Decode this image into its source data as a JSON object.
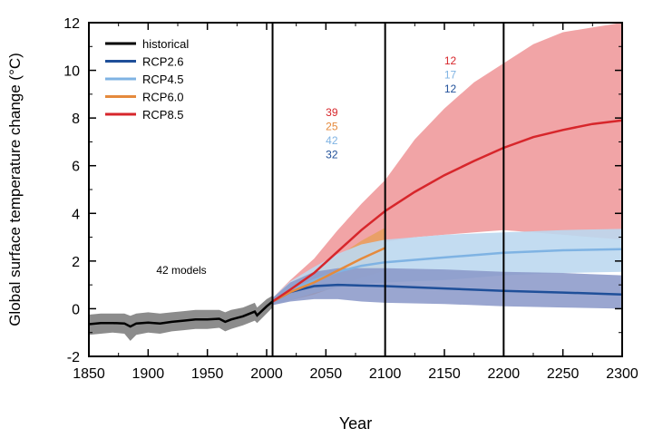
{
  "chart_data": {
    "type": "line",
    "title": "",
    "xlabel": "Year",
    "ylabel": "Global surface temperature change (°C)",
    "xlim": [
      1850,
      2300
    ],
    "ylim": [
      -2,
      12
    ],
    "x_ticks": [
      1850,
      1900,
      1950,
      2000,
      2050,
      2100,
      2150,
      2200,
      2250,
      2300
    ],
    "x_tick_labels": [
      "1850",
      "1900",
      "1950",
      "2000",
      "2050",
      "2100",
      "2150",
      "2200",
      "2250",
      "2300"
    ],
    "y_ticks": [
      -2,
      0,
      2,
      4,
      6,
      8,
      10,
      12
    ],
    "y_tick_labels": [
      "-2",
      "0",
      "2",
      "4",
      "6",
      "8",
      "10",
      "12"
    ],
    "grid": false,
    "vertical_lines": [
      2005,
      2100,
      2200
    ],
    "legend_position": "top-left",
    "annotation_models": "42 models",
    "series": [
      {
        "name": "historical",
        "color": "#000000",
        "x": [
          1850,
          1860,
          1870,
          1880,
          1885,
          1890,
          1900,
          1910,
          1920,
          1930,
          1940,
          1950,
          1960,
          1965,
          1970,
          1980,
          1990,
          1992,
          2000,
          2005
        ],
        "mean": [
          -0.65,
          -0.6,
          -0.6,
          -0.62,
          -0.75,
          -0.62,
          -0.58,
          -0.62,
          -0.55,
          -0.5,
          -0.45,
          -0.45,
          -0.42,
          -0.55,
          -0.45,
          -0.32,
          -0.12,
          -0.28,
          0.1,
          0.3
        ],
        "low": [
          -1.1,
          -1.05,
          -1.0,
          -1.05,
          -1.35,
          -1.1,
          -1.0,
          -1.05,
          -0.95,
          -0.9,
          -0.85,
          -0.85,
          -0.8,
          -0.95,
          -0.85,
          -0.7,
          -0.5,
          -0.6,
          -0.2,
          0.05
        ],
        "high": [
          -0.25,
          -0.2,
          -0.2,
          -0.2,
          -0.3,
          -0.2,
          -0.15,
          -0.2,
          -0.15,
          -0.1,
          -0.05,
          -0.05,
          -0.05,
          -0.15,
          -0.05,
          0.05,
          0.25,
          0.05,
          0.4,
          0.55
        ],
        "band_color": "#808080"
      },
      {
        "name": "RCP2.6",
        "color": "#1f4f99",
        "band_color": "#8897c8",
        "segments": [
          {
            "x": [
              2005,
              2020,
              2040,
              2060,
              2080,
              2100
            ],
            "mean": [
              0.3,
              0.7,
              0.95,
              1.0,
              0.97,
              0.95
            ],
            "low": [
              0.15,
              0.3,
              0.4,
              0.4,
              0.3,
              0.25
            ],
            "high": [
              0.45,
              1.1,
              1.55,
              1.7,
              1.7,
              1.7
            ]
          },
          {
            "x": [
              2100,
              2150,
              2200
            ],
            "mean": [
              0.95,
              0.85,
              0.75
            ],
            "low": [
              0.25,
              0.2,
              0.1
            ],
            "high": [
              1.7,
              1.65,
              1.55
            ]
          },
          {
            "x": [
              2200,
              2250,
              2300
            ],
            "mean": [
              0.75,
              0.68,
              0.6
            ],
            "low": [
              0.1,
              0.05,
              0.0
            ],
            "high": [
              1.55,
              1.5,
              1.4
            ]
          }
        ],
        "counts": [
          "32",
          "12",
          ""
        ]
      },
      {
        "name": "RCP4.5",
        "color": "#7fb3e3",
        "band_color": "#bcd8ef",
        "segments": [
          {
            "x": [
              2005,
              2020,
              2040,
              2060,
              2080,
              2100
            ],
            "mean": [
              0.3,
              0.75,
              1.2,
              1.55,
              1.8,
              1.95
            ],
            "low": [
              0.15,
              0.35,
              0.65,
              0.9,
              1.05,
              1.1
            ],
            "high": [
              0.45,
              1.15,
              1.75,
              2.3,
              2.7,
              2.9
            ]
          },
          {
            "x": [
              2100,
              2150,
              2200
            ],
            "mean": [
              1.95,
              2.15,
              2.35
            ],
            "low": [
              1.1,
              1.2,
              1.4
            ],
            "high": [
              2.9,
              3.1,
              3.2
            ]
          },
          {
            "x": [
              2200,
              2250,
              2300
            ],
            "mean": [
              2.35,
              2.45,
              2.5
            ],
            "low": [
              1.4,
              1.5,
              1.55
            ],
            "high": [
              3.2,
              3.3,
              3.35
            ]
          }
        ],
        "counts": [
          "42",
          "17",
          ""
        ]
      },
      {
        "name": "RCP6.0",
        "color": "#e58a3c",
        "band_color": "#e8a060",
        "segments": [
          {
            "x": [
              2005,
              2020,
              2040,
              2060,
              2080,
              2100
            ],
            "mean": [
              0.3,
              0.7,
              1.1,
              1.6,
              2.1,
              2.55
            ],
            "low": [
              0.15,
              0.35,
              0.6,
              0.95,
              1.3,
              1.6
            ],
            "high": [
              0.45,
              1.05,
              1.6,
              2.2,
              2.85,
              3.4
            ]
          }
        ],
        "counts": [
          "25",
          "",
          ""
        ]
      },
      {
        "name": "RCP8.5",
        "color": "#d7262b",
        "band_color": "#f09a9c",
        "segments": [
          {
            "x": [
              2005,
              2020,
              2040,
              2060,
              2080,
              2100
            ],
            "mean": [
              0.3,
              0.8,
              1.5,
              2.4,
              3.3,
              4.1
            ],
            "low": [
              0.15,
              0.4,
              0.95,
              1.5,
              2.2,
              2.8
            ],
            "high": [
              0.45,
              1.2,
              2.1,
              3.3,
              4.4,
              5.4
            ]
          },
          {
            "x": [
              2100,
              2125,
              2150,
              2175,
              2200
            ],
            "mean": [
              4.1,
              4.9,
              5.6,
              6.2,
              6.75
            ],
            "low": [
              2.8,
              3.0,
              3.1,
              3.2,
              3.3
            ],
            "high": [
              5.4,
              7.1,
              8.4,
              9.5,
              10.3
            ]
          },
          {
            "x": [
              2200,
              2225,
              2250,
              2275,
              2300
            ],
            "mean": [
              6.75,
              7.2,
              7.5,
              7.75,
              7.9
            ],
            "low": [
              3.3,
              3.2,
              3.1,
              3.0,
              2.9
            ],
            "high": [
              10.3,
              11.1,
              11.6,
              11.8,
              12.0
            ]
          }
        ],
        "counts": [
          "39",
          "12",
          ""
        ]
      }
    ],
    "count_columns": [
      {
        "label_x": 2055,
        "entries": [
          {
            "series": "RCP8.5",
            "value": "39"
          },
          {
            "series": "RCP6.0",
            "value": "25"
          },
          {
            "series": "RCP4.5",
            "value": "42"
          },
          {
            "series": "RCP2.6",
            "value": "32"
          }
        ]
      },
      {
        "label_x": 2155,
        "entries": [
          {
            "series": "RCP8.5",
            "value": "12"
          },
          {
            "series": "RCP4.5",
            "value": "17"
          },
          {
            "series": "RCP2.6",
            "value": "12"
          }
        ]
      }
    ]
  }
}
